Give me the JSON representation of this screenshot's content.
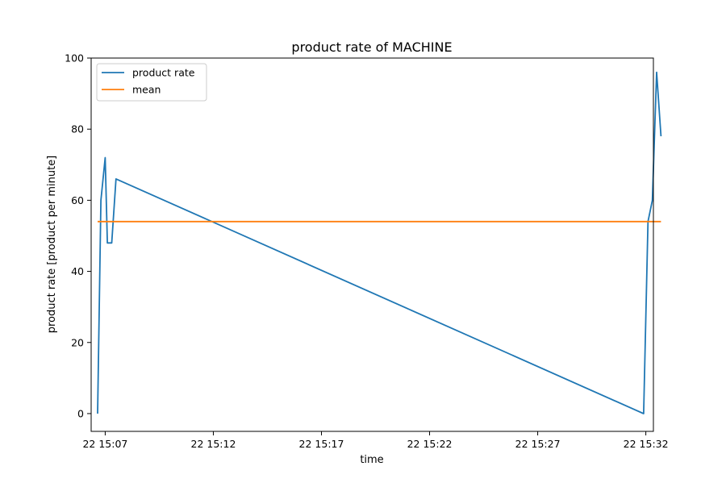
{
  "chart_data": {
    "type": "line",
    "title": "product rate of MACHINE",
    "xlabel": "time",
    "ylabel": "product rate [product per minute]",
    "x_ticks": [
      "22 15:07",
      "22 15:12",
      "22 15:17",
      "22 15:22",
      "22 15:27",
      "22 15:32"
    ],
    "x_tick_values_min": [
      7,
      12,
      17,
      22,
      27,
      32
    ],
    "y_ticks": [
      0,
      20,
      40,
      60,
      80,
      100
    ],
    "xlim_min": [
      6.35,
      32.35
    ],
    "ylim": [
      -5,
      100
    ],
    "grid": false,
    "legend_position": "top-left",
    "series": [
      {
        "name": "product rate",
        "color": "#1f77b4",
        "x_min": [
          6.65,
          6.8,
          7.0,
          7.1,
          7.3,
          7.5,
          31.9,
          32.1,
          32.3,
          32.5,
          32.7
        ],
        "y": [
          0,
          60,
          72,
          48,
          48,
          66,
          0,
          54,
          60,
          96,
          78
        ]
      },
      {
        "name": "mean",
        "color": "#ff7f0e",
        "x_min": [
          6.65,
          32.7
        ],
        "y": [
          54,
          54
        ]
      }
    ]
  }
}
